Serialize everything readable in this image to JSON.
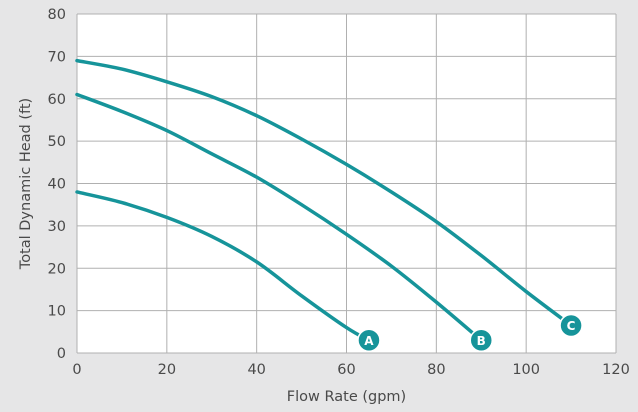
{
  "chart_data": {
    "type": "line",
    "xlabel": "Flow Rate (gpm)",
    "ylabel": "Total Dynamic Head (ft)",
    "xlim": [
      0,
      120
    ],
    "ylim": [
      0,
      80
    ],
    "xticks": [
      0,
      20,
      40,
      60,
      80,
      100,
      120
    ],
    "yticks": [
      0,
      10,
      20,
      30,
      40,
      50,
      60,
      70,
      80
    ],
    "grid": true,
    "colors": {
      "line": "#16949a",
      "grid": "#b0b0b0",
      "plot_bg": "#ffffff",
      "page_bg": "#e6e6e7"
    },
    "series": [
      {
        "name": "A",
        "x": [
          0,
          10,
          20,
          30,
          40,
          50,
          60,
          65
        ],
        "y": [
          38,
          35.5,
          32,
          27.5,
          21.5,
          13.5,
          6,
          3
        ]
      },
      {
        "name": "B",
        "x": [
          0,
          10,
          20,
          30,
          40,
          50,
          60,
          70,
          80,
          90
        ],
        "y": [
          61,
          57,
          52.5,
          47,
          41.5,
          35,
          28,
          20.5,
          12,
          3
        ]
      },
      {
        "name": "C",
        "x": [
          0,
          10,
          20,
          30,
          40,
          50,
          60,
          70,
          80,
          90,
          100,
          110
        ],
        "y": [
          69,
          67,
          64,
          60.5,
          56,
          50.5,
          44.5,
          38,
          31,
          23,
          14.5,
          6.5
        ]
      }
    ]
  }
}
